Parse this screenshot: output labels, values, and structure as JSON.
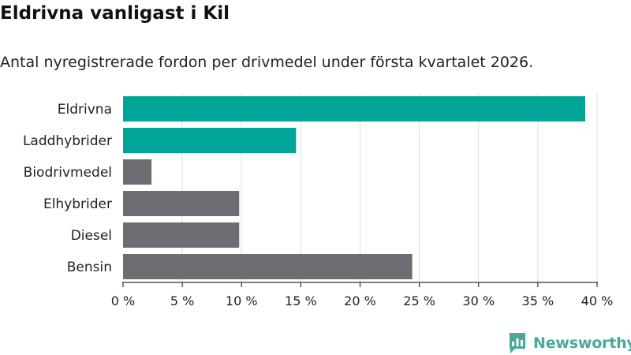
{
  "title": "Eldrivna vanligast i Kil",
  "subtitle": "Antal nyregistrerade fordon per drivmedel under första kvartalet 2026.",
  "brand": {
    "name": "Newsworthy",
    "color": "#4aa89c",
    "icon": "newsworthy-logo-icon"
  },
  "chart_data": {
    "type": "bar",
    "orientation": "horizontal",
    "categories": [
      "Eldrivna",
      "Laddhybrider",
      "Biodrivmedel",
      "Elhybrider",
      "Diesel",
      "Bensin"
    ],
    "values": [
      39,
      14.6,
      2.4,
      9.8,
      9.8,
      24.4
    ],
    "highlight": [
      true,
      true,
      false,
      false,
      false,
      false
    ],
    "colors": {
      "highlight": "#00a597",
      "default": "#6e6d74",
      "grid": "#dddddd",
      "axis": "#333333"
    },
    "xlim": [
      0,
      40
    ],
    "xticks": [
      0,
      5,
      10,
      15,
      20,
      25,
      30,
      35,
      40
    ],
    "xtick_labels": [
      "0 %",
      "5 %",
      "10 %",
      "15 %",
      "20 %",
      "25 %",
      "30 %",
      "35 %",
      "40 %"
    ],
    "grid": true
  }
}
